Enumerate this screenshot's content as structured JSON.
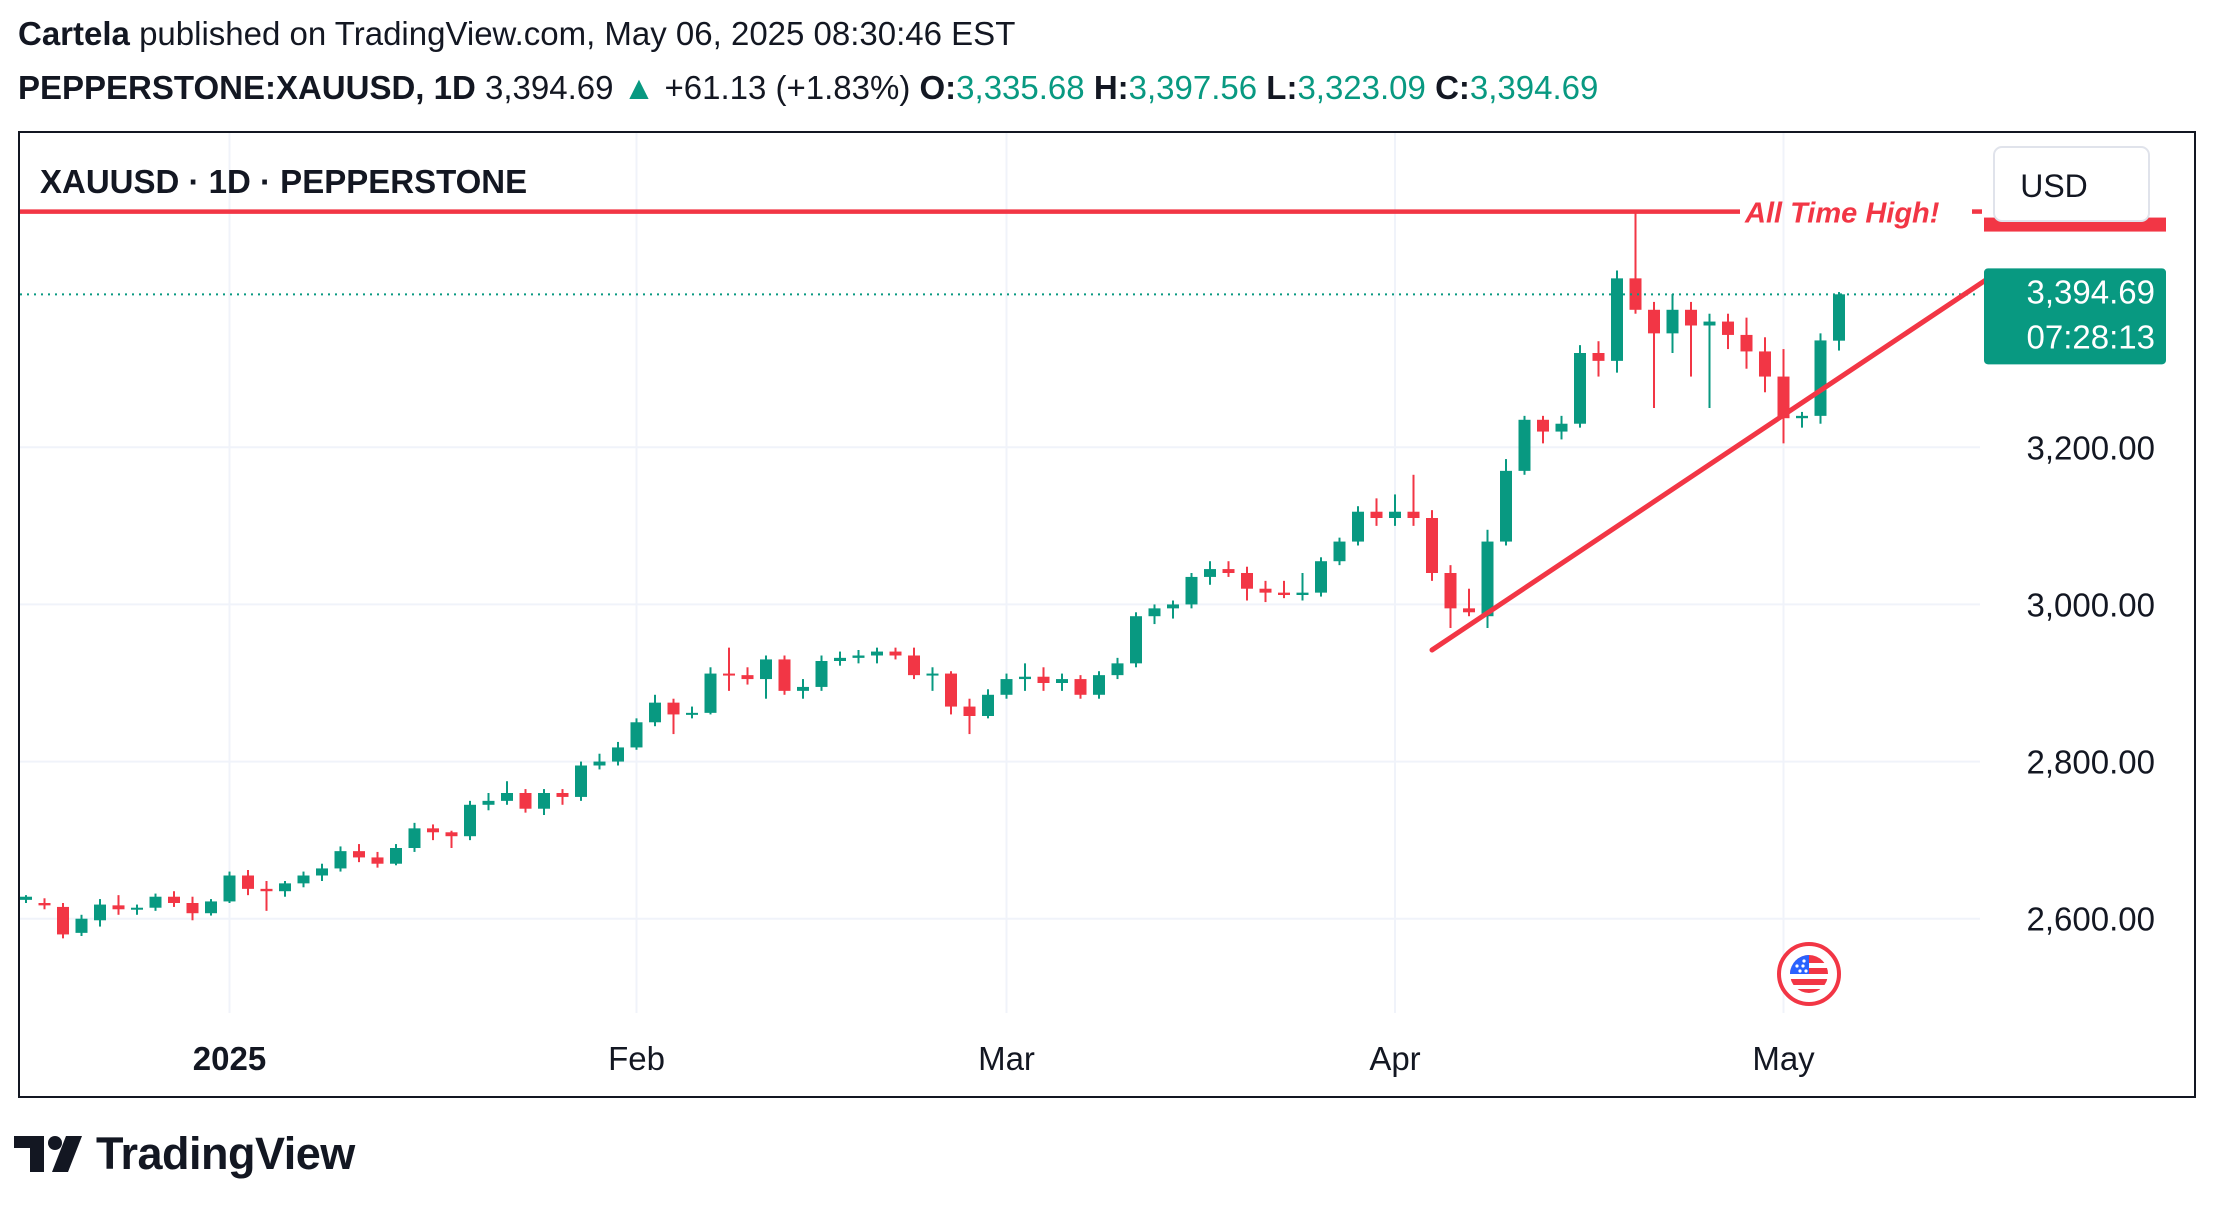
{
  "header": {
    "author": "Cartela",
    "published_text": "published on TradingView.com, May 06, 2025 08:30:46 EST",
    "symbol_line": "PEPPERSTONE:XAUUSD, 1D",
    "last_price": "3,394.69",
    "change_arrow": "▲",
    "change_text": "+61.13 (+1.83%)",
    "o_label": "O:",
    "o_value": "3,335.68",
    "h_label": "H:",
    "h_value": "3,397.56",
    "l_label": "L:",
    "l_value": "3,323.09",
    "c_label": "C:",
    "c_value": "3,394.69"
  },
  "footer": {
    "brand": "TradingView",
    "icon": "tradingview-logo-icon"
  },
  "colors": {
    "up": "#089981",
    "down": "#f23645",
    "annotation": "#f23645",
    "text": "#131722",
    "grid": "#f0f3fa"
  },
  "chart_data": {
    "type": "candlestick",
    "title": "XAUUSD · 1D · PEPPERSTONE",
    "currency": "USD",
    "y_range": [
      2480,
      3600
    ],
    "y_ticks": [
      2600,
      2800,
      3000,
      3200
    ],
    "y_tick_labels": [
      "2,600.00",
      "2,800.00",
      "3,000.00",
      "3,200.00"
    ],
    "x_labels": [
      {
        "label": "2025",
        "index": 11,
        "bold": true
      },
      {
        "label": "Feb",
        "index": 33,
        "bold": false
      },
      {
        "label": "Mar",
        "index": 53,
        "bold": false
      },
      {
        "label": "Apr",
        "index": 74,
        "bold": false
      },
      {
        "label": "May",
        "index": 95,
        "bold": false
      }
    ],
    "last_price_label": "3,394.69",
    "countdown_label": "07:28:13",
    "last_price_value": 3394.69,
    "candles": [
      [
        2624,
        2630,
        2620,
        2628
      ],
      [
        2620,
        2626,
        2612,
        2617
      ],
      [
        2615,
        2620,
        2575,
        2580
      ],
      [
        2582,
        2605,
        2578,
        2600
      ],
      [
        2598,
        2625,
        2590,
        2618
      ],
      [
        2617,
        2630,
        2605,
        2612
      ],
      [
        2612,
        2618,
        2605,
        2614
      ],
      [
        2614,
        2632,
        2610,
        2628
      ],
      [
        2628,
        2635,
        2615,
        2620
      ],
      [
        2620,
        2628,
        2598,
        2607
      ],
      [
        2607,
        2625,
        2604,
        2622
      ],
      [
        2622,
        2660,
        2620,
        2655
      ],
      [
        2655,
        2662,
        2630,
        2638
      ],
      [
        2638,
        2648,
        2610,
        2635
      ],
      [
        2635,
        2648,
        2628,
        2645
      ],
      [
        2645,
        2660,
        2640,
        2655
      ],
      [
        2655,
        2670,
        2648,
        2664
      ],
      [
        2664,
        2692,
        2660,
        2686
      ],
      [
        2686,
        2695,
        2672,
        2678
      ],
      [
        2678,
        2685,
        2665,
        2670
      ],
      [
        2670,
        2695,
        2668,
        2690
      ],
      [
        2690,
        2722,
        2685,
        2715
      ],
      [
        2715,
        2720,
        2700,
        2710
      ],
      [
        2710,
        2712,
        2690,
        2705
      ],
      [
        2705,
        2750,
        2700,
        2745
      ],
      [
        2745,
        2760,
        2738,
        2750
      ],
      [
        2750,
        2775,
        2745,
        2760
      ],
      [
        2760,
        2765,
        2735,
        2740
      ],
      [
        2740,
        2765,
        2732,
        2760
      ],
      [
        2760,
        2765,
        2745,
        2755
      ],
      [
        2755,
        2800,
        2750,
        2795
      ],
      [
        2795,
        2810,
        2790,
        2800
      ],
      [
        2800,
        2825,
        2795,
        2818
      ],
      [
        2818,
        2855,
        2815,
        2850
      ],
      [
        2850,
        2885,
        2845,
        2875
      ],
      [
        2875,
        2880,
        2835,
        2860
      ],
      [
        2860,
        2870,
        2855,
        2862
      ],
      [
        2862,
        2920,
        2860,
        2912
      ],
      [
        2912,
        2945,
        2890,
        2910
      ],
      [
        2910,
        2920,
        2898,
        2905
      ],
      [
        2905,
        2935,
        2880,
        2930
      ],
      [
        2930,
        2935,
        2885,
        2890
      ],
      [
        2890,
        2905,
        2880,
        2895
      ],
      [
        2895,
        2935,
        2890,
        2928
      ],
      [
        2928,
        2940,
        2922,
        2932
      ],
      [
        2932,
        2942,
        2925,
        2935
      ],
      [
        2935,
        2945,
        2925,
        2940
      ],
      [
        2940,
        2945,
        2930,
        2935
      ],
      [
        2935,
        2945,
        2905,
        2910
      ],
      [
        2910,
        2920,
        2890,
        2912
      ],
      [
        2912,
        2915,
        2860,
        2870
      ],
      [
        2870,
        2880,
        2835,
        2858
      ],
      [
        2858,
        2892,
        2855,
        2885
      ],
      [
        2885,
        2912,
        2880,
        2905
      ],
      [
        2905,
        2925,
        2890,
        2908
      ],
      [
        2908,
        2920,
        2890,
        2900
      ],
      [
        2900,
        2912,
        2890,
        2905
      ],
      [
        2905,
        2910,
        2880,
        2885
      ],
      [
        2885,
        2915,
        2880,
        2910
      ],
      [
        2910,
        2932,
        2905,
        2925
      ],
      [
        2925,
        2990,
        2920,
        2985
      ],
      [
        2985,
        3000,
        2975,
        2995
      ],
      [
        2995,
        3005,
        2982,
        3000
      ],
      [
        3000,
        3040,
        2995,
        3035
      ],
      [
        3035,
        3055,
        3025,
        3045
      ],
      [
        3045,
        3055,
        3035,
        3040
      ],
      [
        3040,
        3048,
        3005,
        3020
      ],
      [
        3020,
        3030,
        3003,
        3015
      ],
      [
        3015,
        3030,
        3008,
        3012
      ],
      [
        3012,
        3040,
        3005,
        3015
      ],
      [
        3015,
        3060,
        3010,
        3055
      ],
      [
        3055,
        3085,
        3050,
        3080
      ],
      [
        3080,
        3125,
        3075,
        3118
      ],
      [
        3118,
        3135,
        3100,
        3110
      ],
      [
        3110,
        3140,
        3100,
        3118
      ],
      [
        3118,
        3165,
        3100,
        3110
      ],
      [
        3110,
        3120,
        3030,
        3040
      ],
      [
        3040,
        3050,
        2970,
        2995
      ],
      [
        2995,
        3020,
        2985,
        2990
      ],
      [
        2985,
        3095,
        2970,
        3080
      ],
      [
        3080,
        3185,
        3075,
        3170
      ],
      [
        3170,
        3240,
        3165,
        3235
      ],
      [
        3235,
        3240,
        3205,
        3220
      ],
      [
        3220,
        3240,
        3210,
        3230
      ],
      [
        3230,
        3330,
        3225,
        3320
      ],
      [
        3320,
        3335,
        3290,
        3310
      ],
      [
        3310,
        3425,
        3295,
        3415
      ],
      [
        3415,
        3500,
        3370,
        3375
      ],
      [
        3375,
        3385,
        3250,
        3345
      ],
      [
        3345,
        3395,
        3320,
        3375
      ],
      [
        3375,
        3385,
        3290,
        3355
      ],
      [
        3355,
        3370,
        3250,
        3360
      ],
      [
        3360,
        3370,
        3325,
        3343
      ],
      [
        3343,
        3365,
        3300,
        3322
      ],
      [
        3322,
        3340,
        3270,
        3290
      ],
      [
        3290,
        3325,
        3205,
        3237
      ],
      [
        3237,
        3245,
        3225,
        3240
      ],
      [
        3240,
        3345,
        3230,
        3336
      ],
      [
        3335.68,
        3397.56,
        3323.09,
        3394.69
      ]
    ],
    "annotations": {
      "all_time_high": {
        "label": "All Time High!",
        "price": 3500
      },
      "trendline": {
        "start": {
          "index": 76,
          "price": 2942
        },
        "end": {
          "index": 106,
          "price": 3414
        }
      }
    }
  }
}
